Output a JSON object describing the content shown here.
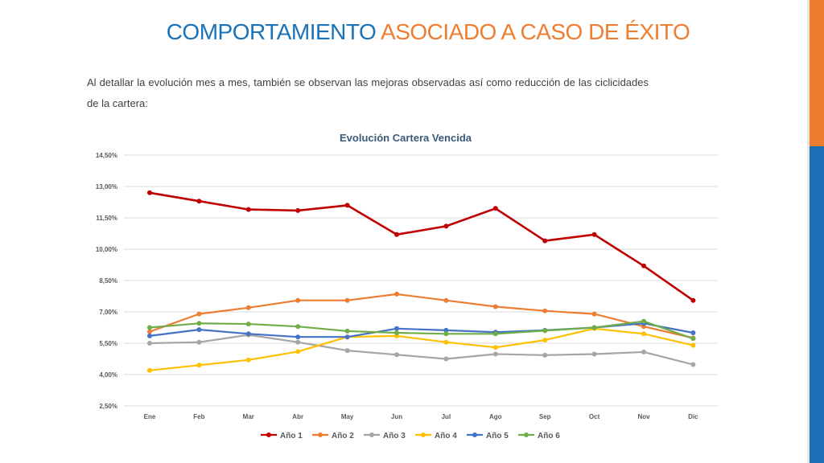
{
  "slide": {
    "title_part1": "COMPORTAMIENTO",
    "title_part2": "ASOCIADO A CASO DE ÉXITO",
    "body": "Al detallar la evolución mes a mes, también se observan las mejoras observadas así como reducción de las ciclicidades de la cartera:"
  },
  "colors": {
    "title_blue": "#1a72b8",
    "title_orange": "#ed7d31",
    "sidebar_top": "#ed7d31",
    "sidebar_bottom": "#1a6fb5"
  },
  "chart_data": {
    "type": "line",
    "title": "Evolución Cartera Vencida",
    "categories": [
      "Ene",
      "Feb",
      "Mar",
      "Abr",
      "May",
      "Jun",
      "Jul",
      "Ago",
      "Sep",
      "Oct",
      "Nov",
      "Dic"
    ],
    "ylim": [
      2.5,
      14.5
    ],
    "yticks": [
      "2,50%",
      "4,00%",
      "5,50%",
      "7,00%",
      "8,50%",
      "10,00%",
      "11,50%",
      "13,00%",
      "14,50%"
    ],
    "grid": true,
    "legend_position": "bottom",
    "series": [
      {
        "name": "Año 1",
        "color": "#c00000",
        "values": [
          12.7,
          12.3,
          11.9,
          11.85,
          12.1,
          10.7,
          11.1,
          11.95,
          10.4,
          10.7,
          9.2,
          7.55
        ]
      },
      {
        "name": "Año 2",
        "color": "#ed7d31",
        "values": [
          6.05,
          6.9,
          7.2,
          7.55,
          7.55,
          7.85,
          7.55,
          7.25,
          7.05,
          6.9,
          6.3,
          5.75
        ]
      },
      {
        "name": "Año 3",
        "color": "#a5a5a5",
        "values": [
          5.5,
          5.55,
          5.9,
          5.55,
          5.15,
          4.95,
          4.75,
          4.98,
          4.93,
          4.98,
          5.08,
          4.48
        ]
      },
      {
        "name": "Año 4",
        "color": "#ffc000",
        "values": [
          4.2,
          4.45,
          4.7,
          5.1,
          5.8,
          5.85,
          5.55,
          5.3,
          5.65,
          6.2,
          5.95,
          5.4
        ]
      },
      {
        "name": "Año 5",
        "color": "#4472c4",
        "values": [
          5.85,
          6.15,
          5.95,
          5.8,
          5.8,
          6.2,
          6.12,
          6.03,
          6.12,
          6.25,
          6.45,
          6.0
        ]
      },
      {
        "name": "Año 6",
        "color": "#70ad47",
        "values": [
          6.25,
          6.45,
          6.42,
          6.3,
          6.08,
          6.0,
          5.95,
          5.95,
          6.1,
          6.25,
          6.55,
          5.72
        ]
      }
    ]
  }
}
